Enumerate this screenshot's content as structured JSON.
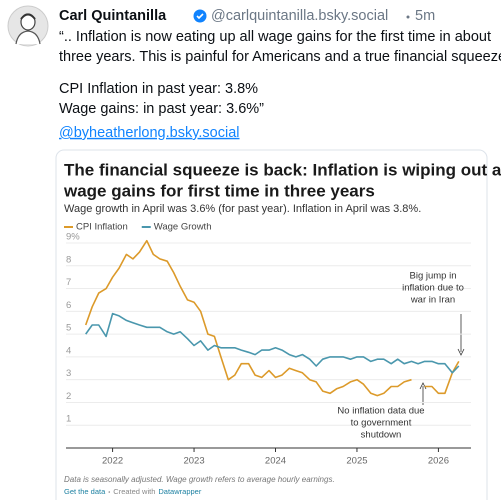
{
  "post": {
    "author": "Carl Quintanilla",
    "handle": "@carlquintanilla.bsky.social",
    "time": "5m",
    "paragraphs": [
      [
        "“.. Inflation is now eating up all wage gains for the first time in about",
        "three years. This is painful for Americans and a true financial squeeze.”"
      ],
      [
        "CPI Inflation in past year: 3.8%",
        "Wage gains: in past year: 3.6%”"
      ]
    ],
    "link": "@byheatherlong.bsky.social"
  },
  "chart_data": {
    "type": "line",
    "title": [
      "The financial squeeze is back: Inflation is wiping out all",
      "wage gains for first time in three years"
    ],
    "subtitle": "Wage growth in April was 3.6% (for past year). Inflation in April was 3.8%.",
    "x": [
      2021.67,
      2021.75,
      2021.83,
      2021.92,
      2022.0,
      2022.08,
      2022.17,
      2022.25,
      2022.33,
      2022.42,
      2022.5,
      2022.58,
      2022.67,
      2022.75,
      2022.83,
      2022.92,
      2023.0,
      2023.08,
      2023.17,
      2023.25,
      2023.33,
      2023.42,
      2023.5,
      2023.58,
      2023.67,
      2023.75,
      2023.83,
      2023.92,
      2024.0,
      2024.08,
      2024.17,
      2024.25,
      2024.33,
      2024.42,
      2024.5,
      2024.58,
      2024.67,
      2024.75,
      2024.83,
      2024.92,
      2025.0,
      2025.08,
      2025.17,
      2025.25,
      2025.33,
      2025.42,
      2025.5,
      2025.58,
      2025.67,
      2025.75,
      2025.83,
      2025.92,
      2026.0,
      2026.08,
      2026.17,
      2026.25
    ],
    "series": [
      {
        "name": "CPI Inflation",
        "color": "#dc9a2a",
        "values": [
          5.4,
          6.2,
          6.8,
          7.0,
          7.5,
          7.9,
          8.5,
          8.3,
          8.6,
          9.1,
          8.5,
          8.3,
          8.2,
          7.7,
          7.1,
          6.5,
          6.4,
          6.0,
          5.0,
          4.9,
          4.0,
          3.0,
          3.2,
          3.7,
          3.7,
          3.2,
          3.1,
          3.4,
          3.1,
          3.2,
          3.5,
          3.4,
          3.3,
          3.0,
          2.9,
          2.5,
          2.4,
          2.6,
          2.7,
          2.9,
          3.0,
          2.8,
          2.4,
          2.3,
          2.4,
          2.7,
          2.7,
          2.9,
          3.0,
          null,
          2.7,
          2.7,
          2.4,
          2.4,
          3.3,
          3.8
        ]
      },
      {
        "name": "Wage Growth",
        "color": "#4a97ad",
        "values": [
          5.0,
          5.4,
          5.4,
          4.9,
          5.9,
          5.8,
          5.6,
          5.5,
          5.4,
          5.3,
          5.3,
          5.3,
          5.1,
          5.0,
          5.1,
          4.8,
          4.5,
          4.7,
          4.3,
          4.5,
          4.4,
          4.4,
          4.4,
          4.3,
          4.2,
          4.1,
          4.3,
          4.3,
          4.4,
          4.3,
          4.1,
          4.0,
          4.1,
          3.9,
          3.6,
          3.9,
          4.0,
          4.0,
          4.0,
          3.9,
          4.0,
          4.0,
          3.8,
          3.9,
          3.9,
          3.7,
          3.9,
          3.7,
          3.8,
          3.7,
          3.8,
          3.8,
          3.7,
          3.7,
          3.3,
          3.6
        ]
      }
    ],
    "xlim": [
      2021.6,
      2026.4
    ],
    "xticks": [
      2022,
      2023,
      2024,
      2025,
      2026
    ],
    "ylim": [
      0,
      9
    ],
    "yticks": [
      1,
      2,
      3,
      4,
      5,
      6,
      7,
      8,
      {
        "value": 9,
        "label": "9%"
      }
    ],
    "grid": true,
    "annotations": [
      [
        "Big jump in",
        "inflation due to",
        "war in Iran"
      ],
      [
        "No inflation data due",
        "to government",
        "shutdown"
      ]
    ],
    "notes": "Data is seasonally adjusted. Wage growth refers to average hourly earnings.",
    "footer": {
      "data_link": "Get the data",
      "credit": "Created with",
      "tool": "Datawrapper"
    }
  }
}
